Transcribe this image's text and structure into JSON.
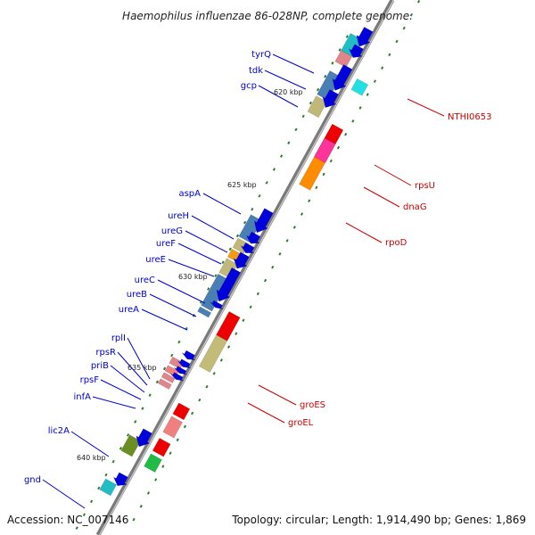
{
  "title": "Haemophilus influenzae 86-028NP, complete genome.",
  "footer": {
    "accession": "Accession: NC_007146",
    "summary": "Topology: circular; Length: 1,914,490 bp; Genes: 1,869"
  },
  "colors": {
    "backbone": "#8a8a8a",
    "forward_label": "#0000cc",
    "reverse_label": "#cc0000",
    "tick": "#2e7d32"
  },
  "kbp_labels": [
    "620 kbp",
    "625 kbp",
    "630 kbp",
    "635 kbp",
    "640 kbp"
  ],
  "forward_genes": [
    "tyrQ",
    "tdk",
    "gcp",
    "aspA",
    "ureH",
    "ureG",
    "ureF",
    "ureE",
    "ureC",
    "ureB",
    "ureA",
    "rplI",
    "rpsR",
    "priB",
    "rpsF",
    "infA",
    "lic2A",
    "gnd"
  ],
  "reverse_genes": [
    "NTHI0653",
    "rpsU",
    "dnaG",
    "rpoD",
    "groES",
    "groEL"
  ]
}
